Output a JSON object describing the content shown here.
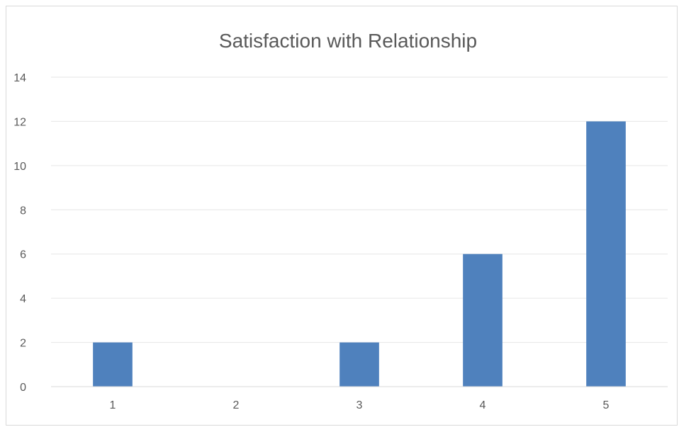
{
  "chart_data": {
    "type": "bar",
    "title": "Satisfaction with Relationship",
    "xlabel": "",
    "ylabel": "",
    "categories": [
      "1",
      "2",
      "3",
      "4",
      "5"
    ],
    "values": [
      2,
      0,
      2,
      6,
      12
    ],
    "ylim": [
      0,
      14
    ],
    "yticks": [
      0,
      2,
      4,
      6,
      8,
      10,
      12,
      14
    ],
    "grid": true,
    "legend": "none",
    "bar_color": "#4f81bd"
  }
}
